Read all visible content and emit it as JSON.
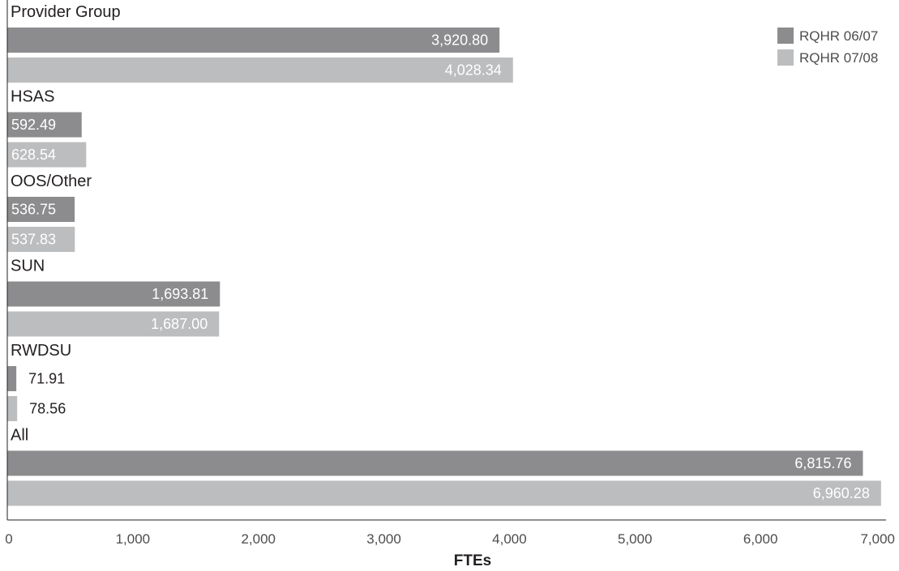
{
  "chart_data": {
    "type": "bar",
    "orientation": "horizontal",
    "categories": [
      "Provider Group",
      "HSAS",
      "OOS/Other",
      "SUN",
      "RWDSU",
      "All"
    ],
    "series": [
      {
        "name": "RQHR 06/07",
        "color": "#8c8c8e",
        "values": [
          3920.8,
          592.49,
          536.75,
          1693.81,
          71.91,
          6815.76
        ],
        "labels": [
          "3,920.80",
          "592.49",
          "536.75",
          "1,693.81",
          "71.91",
          "6,815.76"
        ]
      },
      {
        "name": "RQHR 07/08",
        "color": "#bcbdbf",
        "values": [
          4028.34,
          628.54,
          537.83,
          1687.0,
          78.56,
          6960.28
        ],
        "labels": [
          "4,028.34",
          "628.54",
          "537.83",
          "1,687.00",
          "78.56",
          "6,960.28"
        ]
      }
    ],
    "xlabel": "FTEs",
    "xlim": [
      0,
      7000
    ],
    "xticks": [
      0,
      1000,
      2000,
      3000,
      4000,
      5000,
      6000,
      7000
    ],
    "xtick_labels": [
      "0",
      "1,000",
      "2,000",
      "3,000",
      "4,000",
      "5,000",
      "6,000",
      "7,000"
    ],
    "grid": false,
    "legend_position": "top-right"
  }
}
